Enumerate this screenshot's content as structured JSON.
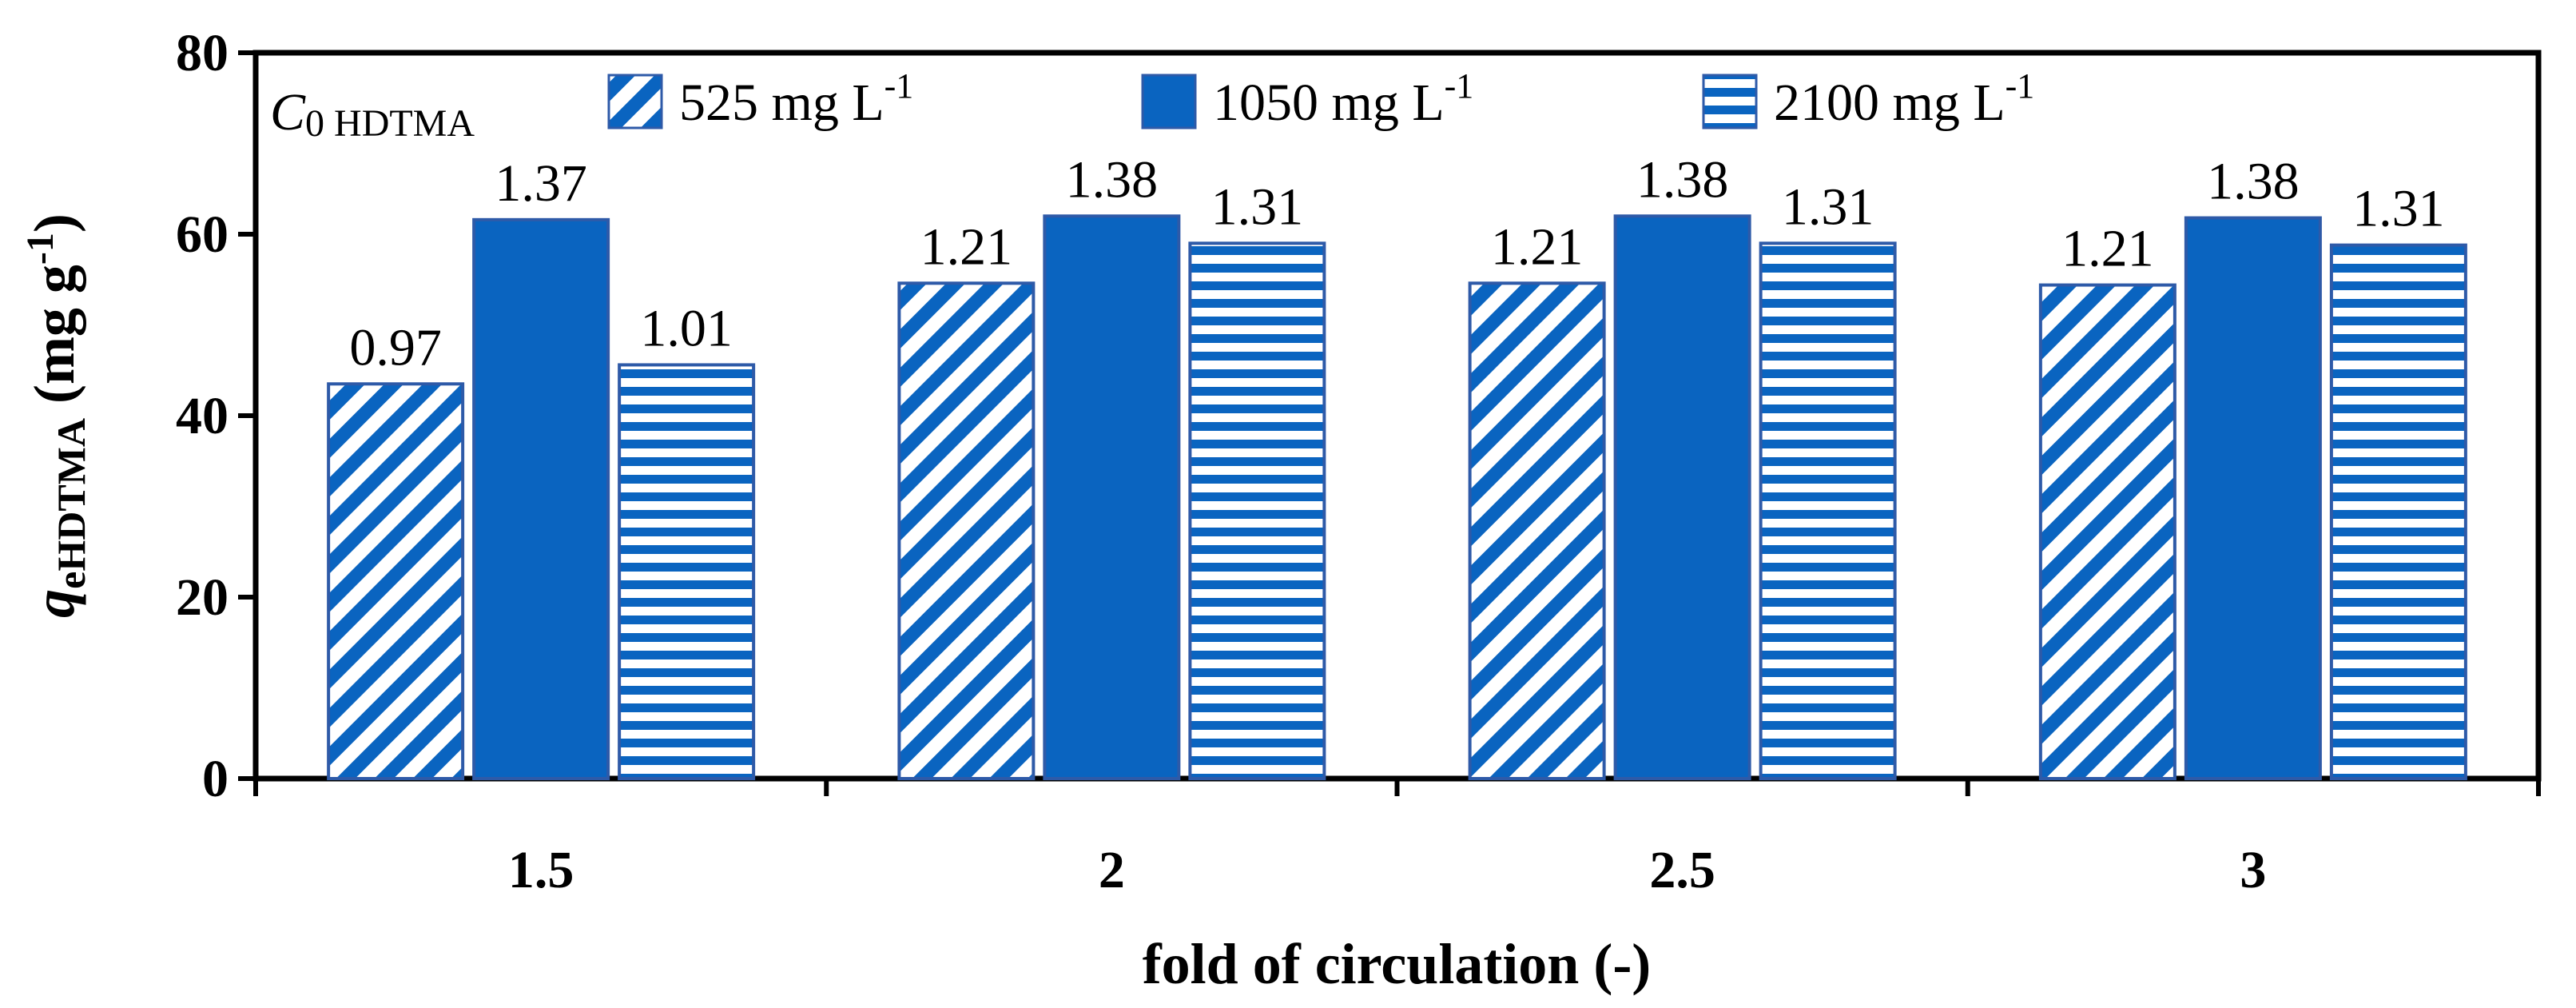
{
  "colors": {
    "bar": "#0a64c0",
    "edge": "#2e5aa8",
    "text": "#000000"
  },
  "chart_data": {
    "type": "bar",
    "categories": [
      "1.5",
      "2",
      "2.5",
      "3"
    ],
    "series": [
      {
        "name": "525",
        "unit": "mg L",
        "sup": "-1",
        "pattern": "diagonal",
        "values": [
          43.5,
          54.6,
          54.6,
          54.4
        ],
        "labels": [
          "0.97",
          "1.21",
          "1.21",
          "1.21"
        ]
      },
      {
        "name": "1050",
        "unit": "mg L",
        "sup": "-1",
        "pattern": "solid",
        "values": [
          61.6,
          62.0,
          62.0,
          61.8
        ],
        "labels": [
          "1.37",
          "1.38",
          "1.38",
          "1.38"
        ]
      },
      {
        "name": "2100",
        "unit": "mg L",
        "sup": "-1",
        "pattern": "horizontal",
        "values": [
          45.6,
          59.0,
          59.0,
          58.8
        ],
        "labels": [
          "1.01",
          "1.31",
          "1.31",
          "1.31"
        ]
      }
    ],
    "legend_title": {
      "italic": "C",
      "sub": "0 HDTMA"
    },
    "xlabel": "fold of circulation (-)",
    "ylabel": {
      "q": "q",
      "sub": "eHDTMA",
      "unit_open": " (mg g",
      "unit_sup": "-1",
      "unit_close": ")"
    },
    "ylim": [
      0,
      80
    ],
    "yticks": [
      "0",
      "20",
      "40",
      "60",
      "80"
    ]
  }
}
